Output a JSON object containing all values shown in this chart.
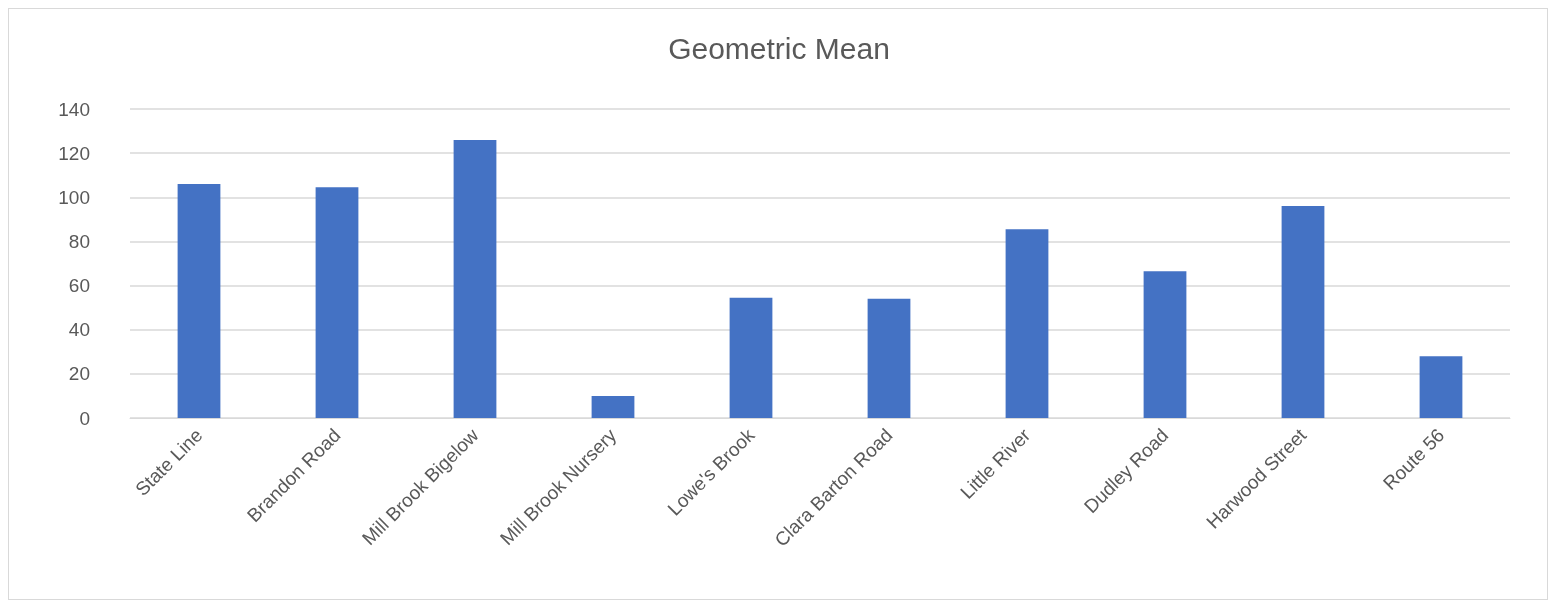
{
  "chart_data": {
    "type": "bar",
    "title": "Geometric Mean",
    "categories": [
      "State Line",
      "Brandon Road",
      "Mill Brook Bigelow",
      "Mill Brook Nursery",
      "Lowe's Brook",
      "Clara Barton Road",
      "Little River",
      "Dudley Road",
      "Harwood Street",
      "Route 56"
    ],
    "values": [
      106,
      104.5,
      126,
      10,
      54.5,
      54,
      85.5,
      66.5,
      96,
      28
    ],
    "color": "#4472c4",
    "ylim": [
      0,
      140
    ],
    "yticks": [
      0,
      20,
      40,
      60,
      80,
      100,
      120,
      140
    ],
    "grid": "y"
  }
}
